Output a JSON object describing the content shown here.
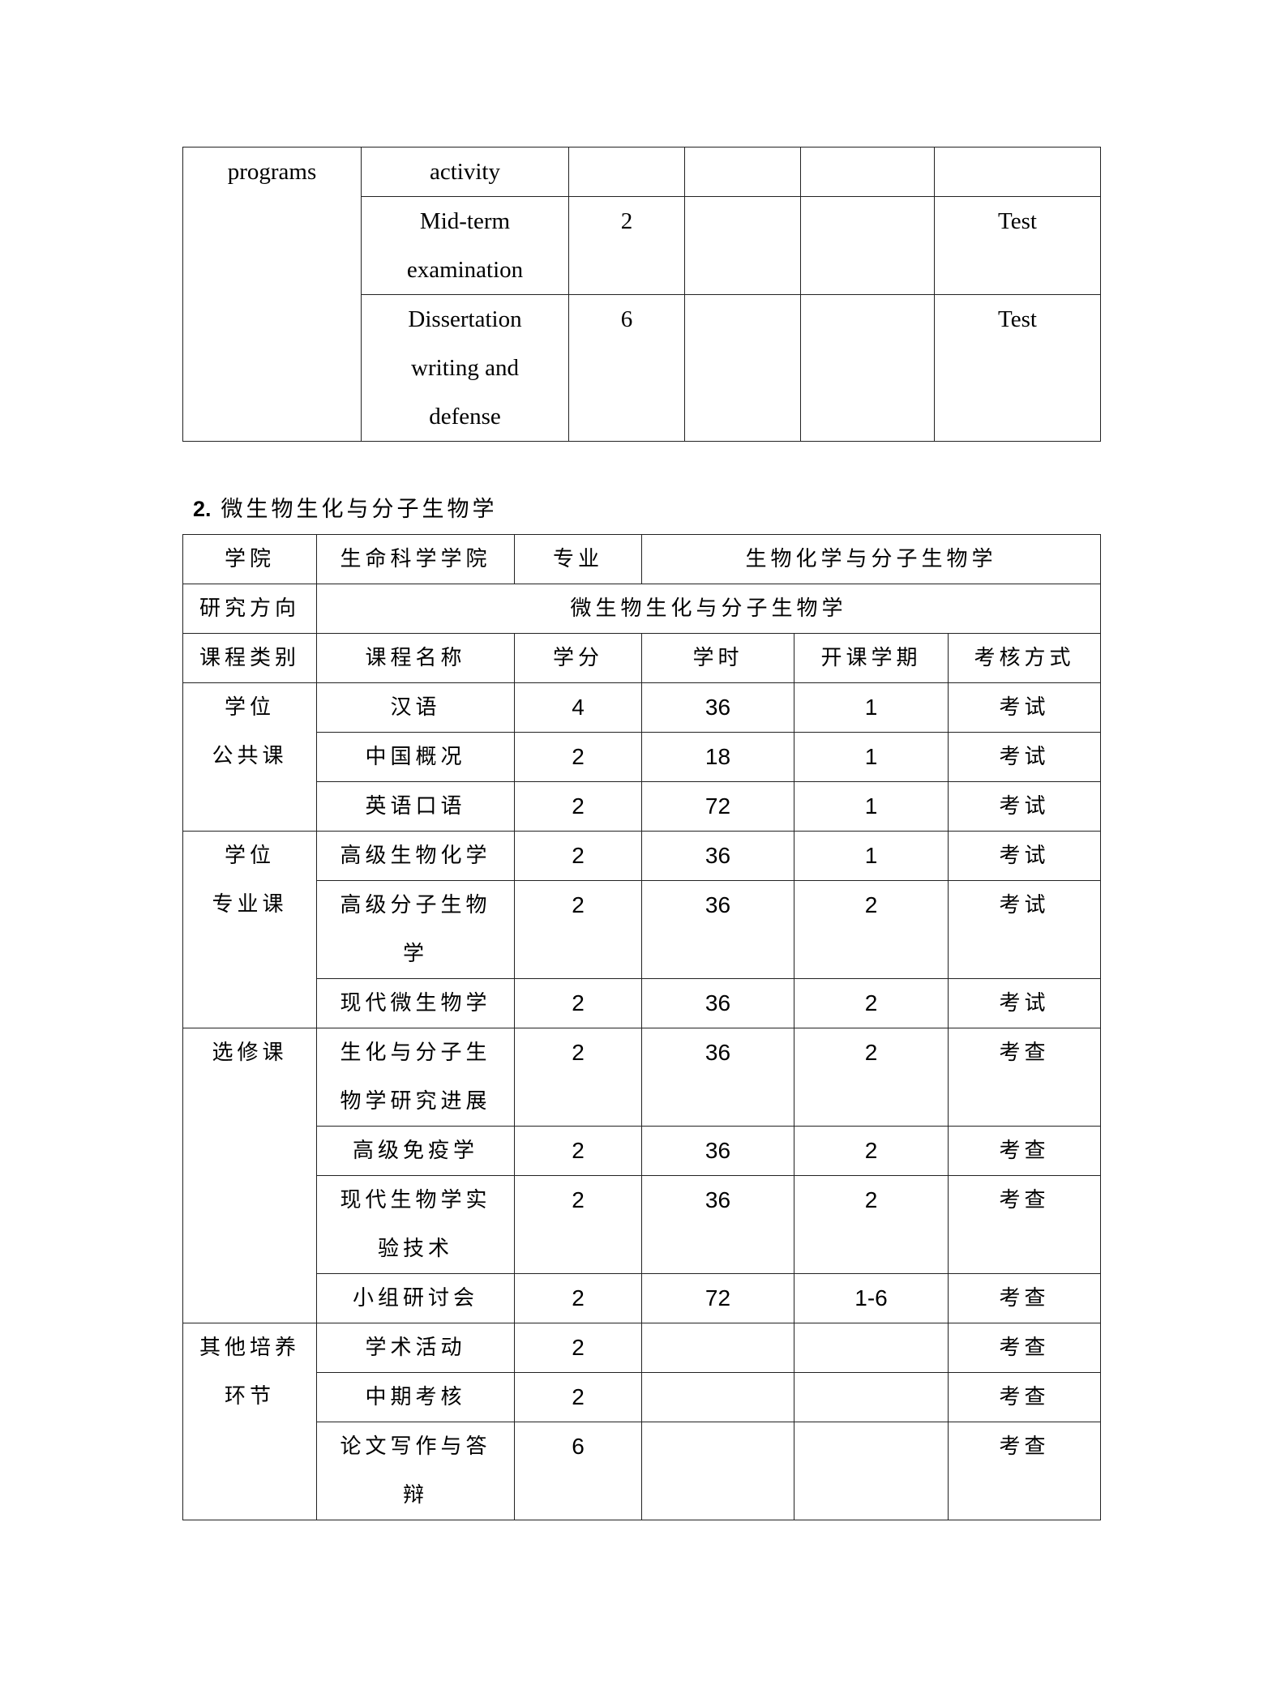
{
  "table1": {
    "category": "programs",
    "rows": [
      {
        "name_lines": [
          "activity"
        ],
        "credit": "",
        "hours": "",
        "semester": "",
        "assessment": ""
      },
      {
        "name_lines": [
          "Mid-term",
          "examination"
        ],
        "credit": "2",
        "hours": "",
        "semester": "",
        "assessment": "Test"
      },
      {
        "name_lines": [
          "Dissertation",
          "writing and",
          "defense"
        ],
        "credit": "6",
        "hours": "",
        "semester": "",
        "assessment": "Test"
      }
    ]
  },
  "section2": {
    "number": "2.",
    "title": "微生物生化与分子生物学"
  },
  "table2": {
    "college_label": "学院",
    "college_value": "生命科学学院",
    "major_label": "专业",
    "major_value": "生物化学与分子生物学",
    "direction_label": "研究方向",
    "direction_value": "微生物生化与分子生物学",
    "headers": [
      "课程类别",
      "课程名称",
      "学分",
      "学时",
      "开课学期",
      "考核方式"
    ],
    "groups": [
      {
        "category_lines": [
          "学位",
          "公共课"
        ],
        "rows": [
          {
            "name_lines": [
              "汉语"
            ],
            "credit": "4",
            "hours": "36",
            "semester": "1",
            "assessment": "考试"
          },
          {
            "name_lines": [
              "中国概况"
            ],
            "credit": "2",
            "hours": "18",
            "semester": "1",
            "assessment": "考试"
          },
          {
            "name_lines": [
              "英语口语"
            ],
            "credit": "2",
            "hours": "72",
            "semester": "1",
            "assessment": "考试"
          }
        ]
      },
      {
        "category_lines": [
          "学位",
          "专业课"
        ],
        "rows": [
          {
            "name_lines": [
              "高级生物化学"
            ],
            "credit": "2",
            "hours": "36",
            "semester": "1",
            "assessment": "考试"
          },
          {
            "name_lines": [
              "高级分子生物",
              "学"
            ],
            "credit": "2",
            "hours": "36",
            "semester": "2",
            "assessment": "考试"
          },
          {
            "name_lines": [
              "现代微生物学"
            ],
            "credit": "2",
            "hours": "36",
            "semester": "2",
            "assessment": "考试"
          }
        ]
      },
      {
        "category_lines": [
          "选修课"
        ],
        "rows": [
          {
            "name_lines": [
              "生化与分子生",
              "物学研究进展"
            ],
            "credit": "2",
            "hours": "36",
            "semester": "2",
            "assessment": "考查"
          },
          {
            "name_lines": [
              "高级免疫学"
            ],
            "credit": "2",
            "hours": "36",
            "semester": "2",
            "assessment": "考查"
          },
          {
            "name_lines": [
              "现代生物学实",
              "验技术"
            ],
            "credit": "2",
            "hours": "36",
            "semester": "2",
            "assessment": "考查"
          },
          {
            "name_lines": [
              "小组研讨会"
            ],
            "credit": "2",
            "hours": "72",
            "semester": "1-6",
            "assessment": "考查"
          }
        ]
      },
      {
        "category_lines": [
          "其他培养",
          "环节"
        ],
        "rows": [
          {
            "name_lines": [
              "学术活动"
            ],
            "credit": "2",
            "hours": "",
            "semester": "",
            "assessment": "考查"
          },
          {
            "name_lines": [
              "中期考核"
            ],
            "credit": "2",
            "hours": "",
            "semester": "",
            "assessment": "考查"
          },
          {
            "name_lines": [
              "论文写作与答",
              "辩"
            ],
            "credit": "6",
            "hours": "",
            "semester": "",
            "assessment": "考查"
          }
        ]
      }
    ]
  }
}
